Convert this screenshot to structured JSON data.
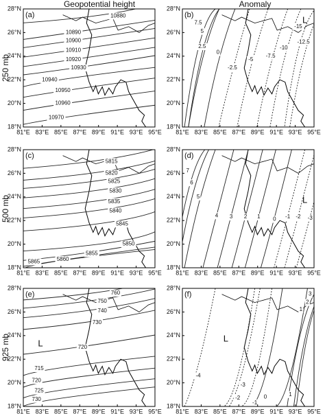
{
  "headers": [
    "Geopotential height",
    "Anomaly"
  ],
  "rows": [
    "250 mb",
    "500 mb",
    "925 mb"
  ],
  "x_ticks": [
    "81°E",
    "83°E",
    "85°E",
    "87°E",
    "89°E",
    "91°E",
    "93°E",
    "95°E"
  ],
  "y_ticks": [
    "18°N",
    "20°N",
    "22°N",
    "24°N",
    "26°N",
    "28°N"
  ],
  "panels": [
    {
      "label": "(a)",
      "contour_labels": [
        "10880",
        "10890",
        "10900",
        "10910",
        "10920",
        "10930",
        "10940",
        "10950",
        "10960",
        "10970"
      ]
    },
    {
      "label": "(b)",
      "contour_labels": [
        "7.5",
        "5",
        "2.5",
        "0",
        "-2.5",
        "-5",
        "-7.5",
        "-10",
        "-12.5",
        "-15",
        "L"
      ]
    },
    {
      "label": "(c)",
      "contour_labels": [
        "5815",
        "5820",
        "5825",
        "5830",
        "5835",
        "5840",
        "5845",
        "5850",
        "5855",
        "5860",
        "5865"
      ]
    },
    {
      "label": "(d)",
      "contour_labels": [
        "7",
        "6",
        "5",
        "4",
        "3",
        "2",
        "1",
        "0",
        "-1",
        "-2",
        "-3",
        "L"
      ]
    },
    {
      "label": "(e)",
      "contour_labels": [
        "760",
        "750",
        "740",
        "730",
        "720",
        "715",
        "720",
        "725",
        "730",
        "L"
      ]
    },
    {
      "label": "(f)",
      "contour_labels": [
        "3",
        "2",
        "1",
        "-4",
        "-3",
        "-2",
        "-1",
        "0",
        "1",
        "L"
      ]
    }
  ]
}
